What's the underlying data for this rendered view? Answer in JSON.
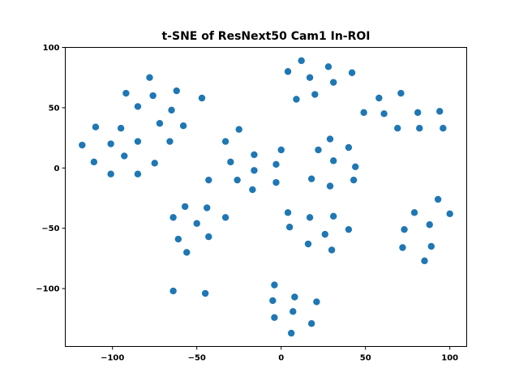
{
  "chart_data": {
    "type": "scatter",
    "title": "t-SNE of ResNext50 Cam1 In-ROI",
    "xlabel": "",
    "ylabel": "",
    "xlim": [
      -128,
      110
    ],
    "ylim": [
      -148,
      100
    ],
    "xticks": [
      -100,
      -50,
      0,
      50,
      100
    ],
    "yticks": [
      -100,
      -50,
      0,
      50,
      100
    ],
    "xtick_labels": [
      "−100",
      "−50",
      "0",
      "50",
      "100"
    ],
    "ytick_labels": [
      "−100",
      "−50",
      "0",
      "50",
      "100"
    ],
    "grid": false,
    "color": "#1f77b4",
    "series": [
      {
        "x": [
          -78,
          -92,
          -62,
          -76,
          -85,
          -65,
          -47,
          -72,
          -58,
          -95,
          -110,
          -118,
          -101,
          -93,
          -85,
          -66,
          -111,
          -101,
          -85,
          -75,
          12,
          4,
          17,
          28,
          20,
          31,
          42,
          9,
          -33,
          -25,
          -16,
          0,
          -30,
          -16,
          -43,
          -26,
          -17,
          -3,
          -3,
          29,
          40,
          22,
          31,
          44,
          18,
          43,
          29,
          71,
          58,
          94,
          49,
          61,
          81,
          96,
          69,
          82,
          -57,
          -44,
          -64,
          -50,
          -33,
          -43,
          -61,
          -56,
          4,
          5,
          17,
          26,
          40,
          31,
          16,
          30,
          93,
          79,
          100,
          73,
          88,
          72,
          89,
          85,
          -64,
          -45,
          -4,
          8,
          -5,
          21,
          7,
          -4,
          18,
          6
        ],
        "y": [
          75,
          62,
          64,
          60,
          51,
          48,
          58,
          37,
          35,
          33,
          34,
          19,
          20,
          10,
          22,
          22,
          5,
          -5,
          -5,
          4,
          89,
          80,
          75,
          84,
          61,
          71,
          79,
          57,
          22,
          32,
          11,
          15,
          5,
          -2,
          -10,
          -10,
          -18,
          3,
          -12,
          24,
          17,
          15,
          6,
          1,
          -9,
          -10,
          -15,
          62,
          58,
          47,
          46,
          45,
          46,
          33,
          33,
          33,
          -32,
          -33,
          -41,
          -46,
          -41,
          -57,
          -59,
          -70,
          -37,
          -49,
          -41,
          -55,
          -51,
          -40,
          -63,
          -68,
          -26,
          -37,
          -38,
          -51,
          -47,
          -66,
          -65,
          -77,
          -102,
          -104,
          -97,
          -107,
          -110,
          -111,
          -119,
          -124,
          -129,
          -137
        ]
      }
    ]
  }
}
